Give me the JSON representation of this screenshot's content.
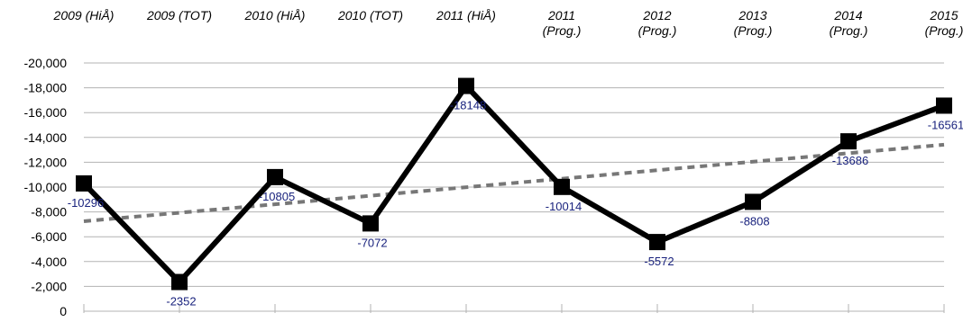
{
  "chart_data": {
    "type": "line",
    "categories": [
      [
        "2009 (HiÅ)"
      ],
      [
        "2009 (TOT)"
      ],
      [
        "2010 (HiÅ)"
      ],
      [
        "2010 (TOT)"
      ],
      [
        "2011 (HiÅ)"
      ],
      [
        "2011",
        "(Prog.)"
      ],
      [
        "2012",
        "(Prog.)"
      ],
      [
        "2013",
        "(Prog.)"
      ],
      [
        "2014",
        "(Prog.)"
      ],
      [
        "2015",
        "(Prog.)"
      ]
    ],
    "series": [
      {
        "values": [
          -10296,
          -2352,
          -10805,
          -7072,
          -18148,
          -10014,
          -5572,
          -8808,
          -13686,
          -16561
        ],
        "data_labels": [
          "-10296",
          "-2352",
          "-10805",
          "-7072",
          "-18148",
          "-10014",
          "-5572",
          "-8808",
          "-13686",
          "-16561"
        ],
        "color": "#000000",
        "marker": "square"
      }
    ],
    "trendline": {
      "type": "linear",
      "style": "dashed",
      "color": "#777777"
    },
    "y_axis": {
      "min": -20000,
      "max": 0,
      "step": 2000,
      "reversed": true,
      "tick_labels": [
        "0",
        "-2,000",
        "-4,000",
        "-6,000",
        "-8,000",
        "-10,000",
        "-12,000",
        "-14,000",
        "-16,000",
        "-18,000",
        "-20,000"
      ]
    },
    "x_axis_position": "top",
    "grid": {
      "horizontal": true,
      "vertical": false,
      "color": "#b3b3b3"
    },
    "legend": "none"
  }
}
